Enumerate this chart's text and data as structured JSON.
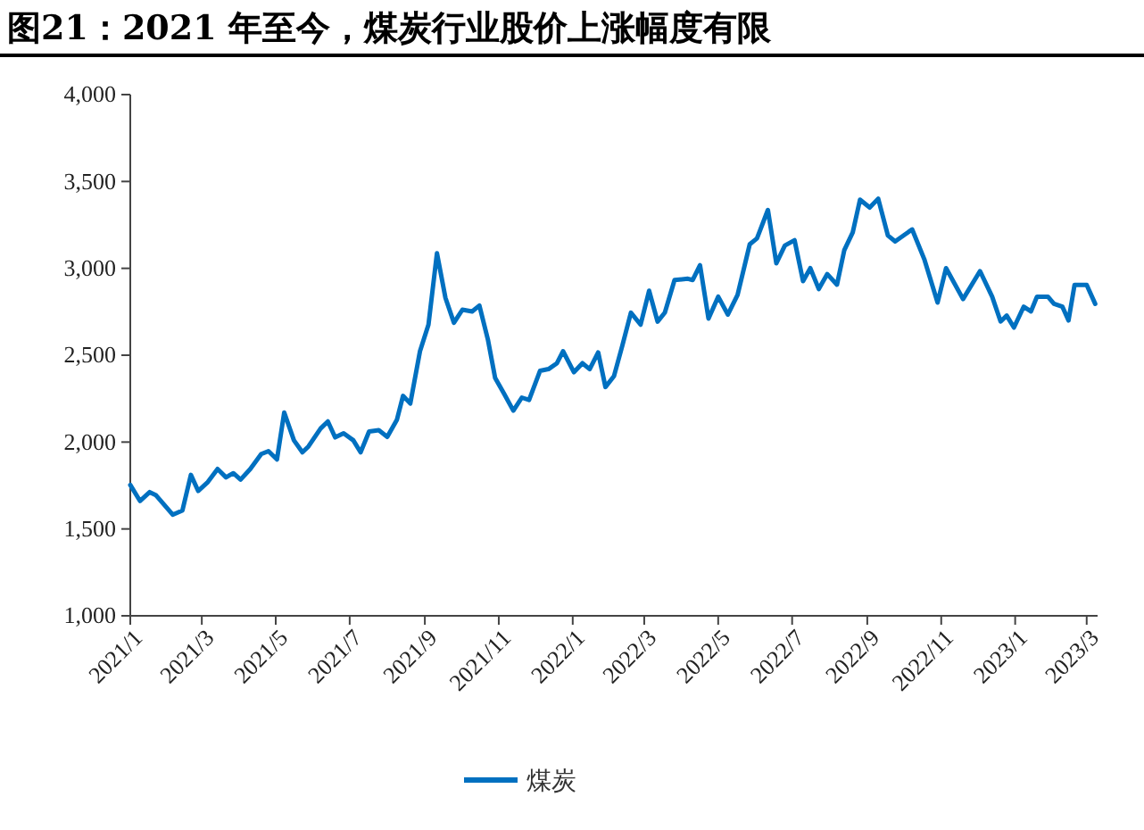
{
  "chart_data": {
    "type": "line",
    "title": "图21：2021 年至今，煤炭行业股价上涨幅度有限",
    "x": [
      "2021-01-01",
      "2021-01-09",
      "2021-01-17",
      "2021-01-22",
      "2021-02-05",
      "2021-02-13",
      "2021-02-20",
      "2021-02-26",
      "2021-03-06",
      "2021-03-14",
      "2021-03-21",
      "2021-03-27",
      "2021-04-02",
      "2021-04-10",
      "2021-04-19",
      "2021-04-25",
      "2021-05-02",
      "2021-05-08",
      "2021-05-16",
      "2021-05-23",
      "2021-05-28",
      "2021-06-07",
      "2021-06-13",
      "2021-06-19",
      "2021-06-26",
      "2021-07-04",
      "2021-07-10",
      "2021-07-17",
      "2021-07-25",
      "2021-08-01",
      "2021-08-09",
      "2021-08-14",
      "2021-08-20",
      "2021-08-28",
      "2021-09-04",
      "2021-09-11",
      "2021-09-18",
      "2021-09-25",
      "2021-10-02",
      "2021-10-10",
      "2021-10-16",
      "2021-10-23",
      "2021-10-29",
      "2021-11-05",
      "2021-11-13",
      "2021-11-20",
      "2021-11-26",
      "2021-12-05",
      "2021-12-12",
      "2021-12-19",
      "2021-12-24",
      "2022-01-02",
      "2022-01-09",
      "2022-01-15",
      "2022-01-22",
      "2022-01-28",
      "2022-02-04",
      "2022-02-11",
      "2022-02-18",
      "2022-02-26",
      "2022-03-05",
      "2022-03-12",
      "2022-03-18",
      "2022-03-26",
      "2022-04-06",
      "2022-04-10",
      "2022-04-16",
      "2022-04-23",
      "2022-05-01",
      "2022-05-09",
      "2022-05-17",
      "2022-05-27",
      "2022-06-02",
      "2022-06-11",
      "2022-06-18",
      "2022-06-25",
      "2022-07-03",
      "2022-07-10",
      "2022-07-16",
      "2022-07-23",
      "2022-07-30",
      "2022-08-07",
      "2022-08-13",
      "2022-08-20",
      "2022-08-26",
      "2022-09-03",
      "2022-09-10",
      "2022-09-18",
      "2022-09-24",
      "2022-10-08",
      "2022-10-18",
      "2022-10-29",
      "2022-11-05",
      "2022-11-19",
      "2022-12-03",
      "2022-12-13",
      "2022-12-20",
      "2022-12-25",
      "2022-12-31",
      "2023-01-08",
      "2023-01-14",
      "2023-01-19",
      "2023-01-28",
      "2023-02-02",
      "2023-02-09",
      "2023-02-14",
      "2023-02-19",
      "2023-03-01",
      "2023-03-08"
    ],
    "series": [
      {
        "name": "煤炭",
        "color": "#0070c0",
        "values": [
          1753,
          1661,
          1712,
          1695,
          1582,
          1606,
          1811,
          1719,
          1770,
          1845,
          1797,
          1821,
          1784,
          1845,
          1931,
          1948,
          1900,
          2170,
          2010,
          1941,
          1975,
          2078,
          2119,
          2027,
          2051,
          2010,
          1941,
          2061,
          2068,
          2030,
          2129,
          2266,
          2222,
          2523,
          2676,
          3087,
          2830,
          2687,
          2762,
          2752,
          2786,
          2591,
          2369,
          2283,
          2181,
          2256,
          2242,
          2410,
          2420,
          2454,
          2523,
          2402,
          2454,
          2420,
          2516,
          2317,
          2379,
          2557,
          2745,
          2676,
          2871,
          2693,
          2745,
          2933,
          2940,
          2933,
          3018,
          2711,
          2837,
          2734,
          2847,
          3138,
          3172,
          3336,
          3029,
          3131,
          3162,
          2926,
          3001,
          2881,
          2967,
          2906,
          3104,
          3207,
          3395,
          3350,
          3401,
          3189,
          3155,
          3224,
          3053,
          2803,
          3001,
          2823,
          2984,
          2837,
          2694,
          2728,
          2659,
          2779,
          2752,
          2837,
          2837,
          2796,
          2779,
          2700,
          2905,
          2905,
          2796
        ]
      }
    ],
    "xlim": [
      "2021-01-01",
      "2023-03-10"
    ],
    "xticks": [
      {
        "value": "2021-01-01",
        "label": "2021/1"
      },
      {
        "value": "2021-03-01",
        "label": "2021/3"
      },
      {
        "value": "2021-05-01",
        "label": "2021/5"
      },
      {
        "value": "2021-07-01",
        "label": "2021/7"
      },
      {
        "value": "2021-09-01",
        "label": "2021/9"
      },
      {
        "value": "2021-11-01",
        "label": "2021/11"
      },
      {
        "value": "2022-01-01",
        "label": "2022/1"
      },
      {
        "value": "2022-03-01",
        "label": "2022/3"
      },
      {
        "value": "2022-05-01",
        "label": "2022/5"
      },
      {
        "value": "2022-07-01",
        "label": "2022/7"
      },
      {
        "value": "2022-09-01",
        "label": "2022/9"
      },
      {
        "value": "2022-11-01",
        "label": "2022/11"
      },
      {
        "value": "2023-01-01",
        "label": "2023/1"
      },
      {
        "value": "2023-03-01",
        "label": "2023/3"
      }
    ],
    "ylim": [
      1000,
      4000
    ],
    "yticks": [
      {
        "value": 1000,
        "label": "1,000"
      },
      {
        "value": 1500,
        "label": "1,500"
      },
      {
        "value": 2000,
        "label": "2,000"
      },
      {
        "value": 2500,
        "label": "2,500"
      },
      {
        "value": 3000,
        "label": "3,000"
      },
      {
        "value": 3500,
        "label": "3,500"
      },
      {
        "value": 4000,
        "label": "4,000"
      }
    ],
    "grid": false,
    "legend": "bottom",
    "marker": "none",
    "line_style": "solid"
  }
}
